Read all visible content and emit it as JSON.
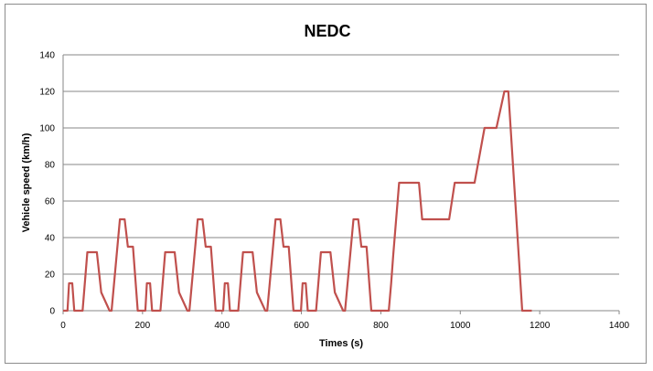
{
  "chart_data": {
    "type": "line",
    "title": "NEDC",
    "xlabel": "Times (s)",
    "ylabel": "Vehicle speed (km/h)",
    "xlim": [
      0,
      1400
    ],
    "ylim": [
      0,
      140
    ],
    "x_ticks": [
      0,
      200,
      400,
      600,
      800,
      1000,
      1200,
      1400
    ],
    "y_ticks": [
      0,
      20,
      40,
      60,
      80,
      100,
      120,
      140
    ],
    "grid": "horizontal",
    "legend": "none",
    "series": [
      {
        "color": "#c0504d",
        "points": [
          [
            0,
            0
          ],
          [
            11,
            0
          ],
          [
            15,
            15
          ],
          [
            23,
            15
          ],
          [
            28,
            0
          ],
          [
            49,
            0
          ],
          [
            61,
            32
          ],
          [
            85,
            32
          ],
          [
            96,
            10
          ],
          [
            96,
            10
          ],
          [
            117,
            0
          ],
          [
            122,
            0
          ],
          [
            143,
            50
          ],
          [
            155,
            50
          ],
          [
            163,
            35
          ],
          [
            176,
            35
          ],
          [
            188,
            0
          ],
          [
            206,
            0
          ],
          [
            206,
            0
          ],
          [
            207,
            0
          ],
          [
            211,
            15
          ],
          [
            219,
            15
          ],
          [
            224,
            0
          ],
          [
            245,
            0
          ],
          [
            257,
            32
          ],
          [
            281,
            32
          ],
          [
            292,
            10
          ],
          [
            313,
            0
          ],
          [
            318,
            0
          ],
          [
            339,
            50
          ],
          [
            351,
            50
          ],
          [
            359,
            35
          ],
          [
            372,
            35
          ],
          [
            384,
            0
          ],
          [
            402,
            0
          ],
          [
            402,
            0
          ],
          [
            403,
            0
          ],
          [
            407,
            15
          ],
          [
            415,
            15
          ],
          [
            420,
            0
          ],
          [
            441,
            0
          ],
          [
            453,
            32
          ],
          [
            477,
            32
          ],
          [
            488,
            10
          ],
          [
            509,
            0
          ],
          [
            514,
            0
          ],
          [
            535,
            50
          ],
          [
            547,
            50
          ],
          [
            555,
            35
          ],
          [
            568,
            35
          ],
          [
            580,
            0
          ],
          [
            598,
            0
          ],
          [
            598,
            0
          ],
          [
            599,
            0
          ],
          [
            603,
            15
          ],
          [
            611,
            15
          ],
          [
            616,
            0
          ],
          [
            637,
            0
          ],
          [
            649,
            32
          ],
          [
            673,
            32
          ],
          [
            684,
            10
          ],
          [
            705,
            0
          ],
          [
            710,
            0
          ],
          [
            731,
            50
          ],
          [
            743,
            50
          ],
          [
            751,
            35
          ],
          [
            764,
            35
          ],
          [
            776,
            0
          ],
          [
            800,
            0
          ],
          [
            800,
            0
          ],
          [
            820,
            0
          ],
          [
            826,
            15
          ],
          [
            831,
            30
          ],
          [
            846,
            70
          ],
          [
            896,
            70
          ],
          [
            904,
            50
          ],
          [
            972,
            50
          ],
          [
            986,
            70
          ],
          [
            1036,
            70
          ],
          [
            1061,
            100
          ],
          [
            1091,
            100
          ],
          [
            1111,
            120
          ],
          [
            1121,
            120
          ],
          [
            1156,
            0
          ],
          [
            1180,
            0
          ]
        ]
      }
    ]
  }
}
